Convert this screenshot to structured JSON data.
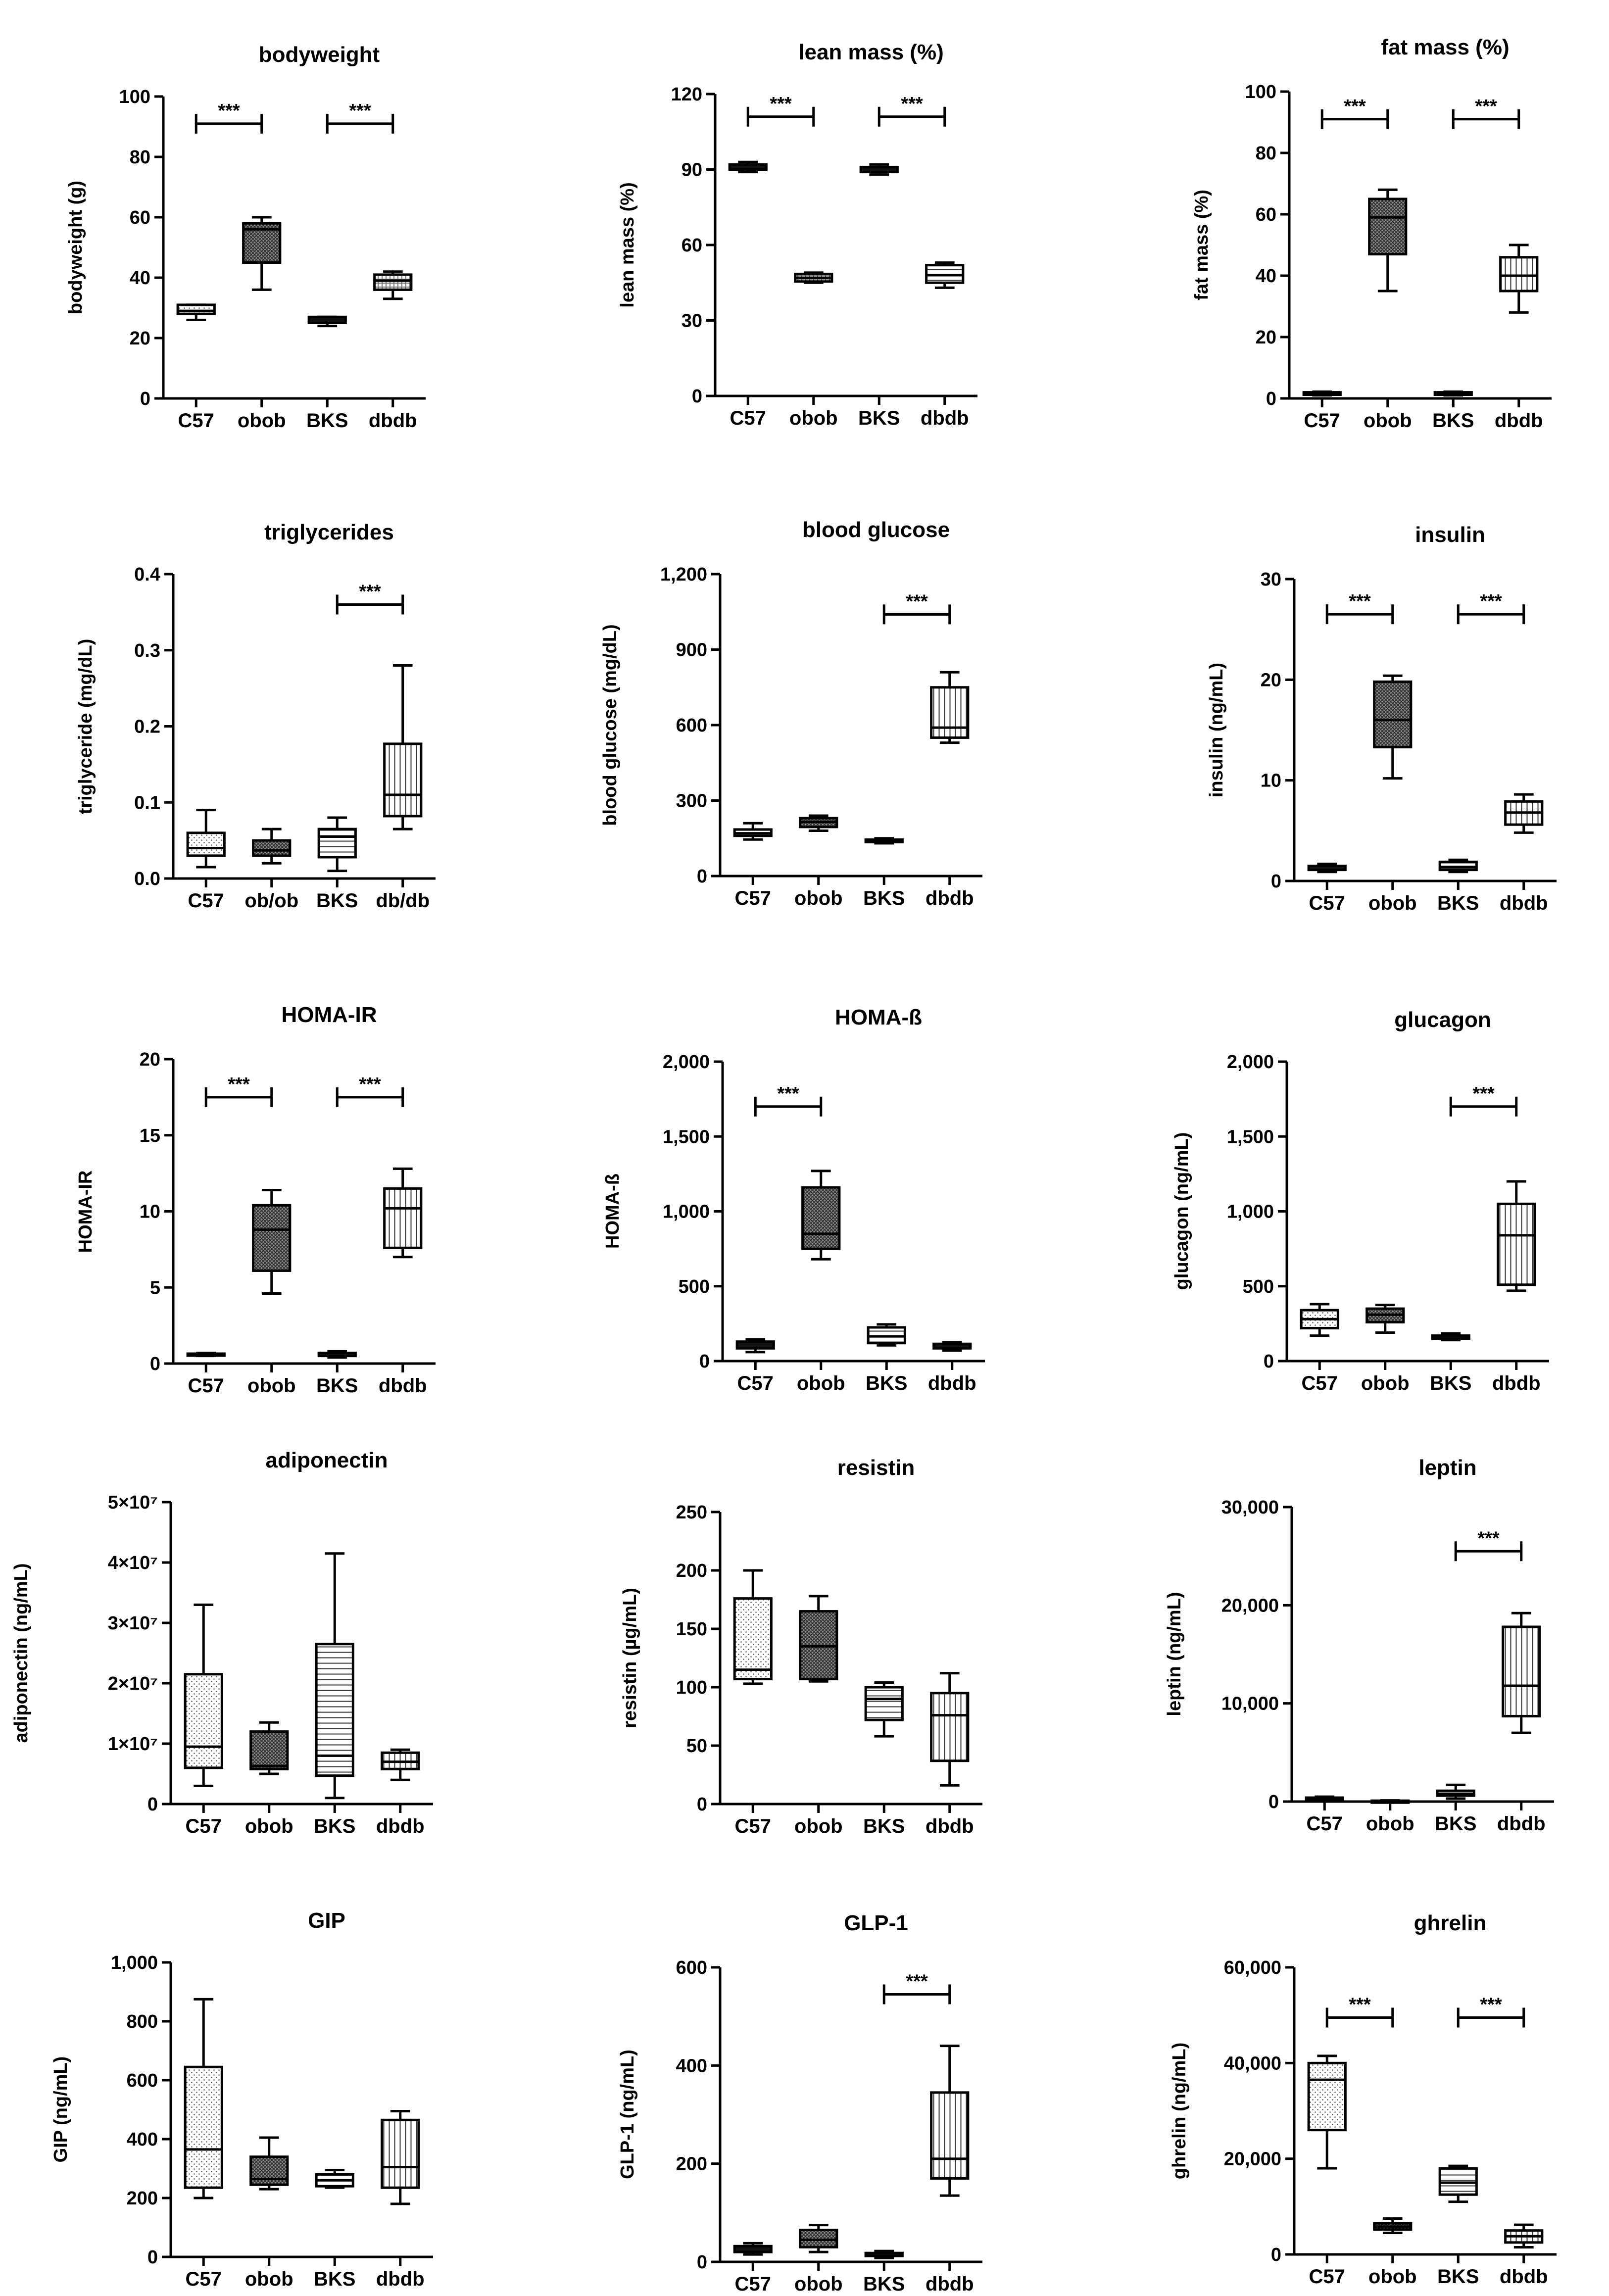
{
  "chart_data": [
    {
      "type": "box",
      "title": "bodyweight",
      "ylabel": "bodyweight (g)",
      "categories": [
        "C57",
        "obob",
        "BKS",
        "dbdb"
      ],
      "ylim": [
        0,
        100
      ],
      "yticks": [
        0,
        20,
        40,
        60,
        80,
        100
      ],
      "ytick_labels": [
        "0",
        "20",
        "40",
        "60",
        "80",
        "100"
      ],
      "boxes": [
        {
          "min": 26,
          "q1": 28,
          "median": 29,
          "q3": 31,
          "max": 31,
          "pattern": "dots"
        },
        {
          "min": 36,
          "q1": 45,
          "median": 56,
          "q3": 58,
          "max": 60,
          "pattern": "cross"
        },
        {
          "min": 24,
          "q1": 25,
          "median": 26,
          "q3": 27,
          "max": 27,
          "pattern": "solid"
        },
        {
          "min": 33,
          "q1": 36,
          "median": 39,
          "q3": 41,
          "max": 42,
          "pattern": "grid"
        }
      ],
      "significance": [
        {
          "from": 0,
          "to": 1,
          "label": "***",
          "y": 91
        },
        {
          "from": 2,
          "to": 3,
          "label": "***",
          "y": 91
        }
      ]
    },
    {
      "type": "box",
      "title": "lean mass (%)",
      "ylabel": "lean mass (%)",
      "categories": [
        "C57",
        "obob",
        "BKS",
        "dbdb"
      ],
      "ylim": [
        0,
        120
      ],
      "yticks": [
        0,
        30,
        60,
        90,
        120
      ],
      "ytick_labels": [
        "0",
        "30",
        "60",
        "90",
        "120"
      ],
      "boxes": [
        {
          "min": 89,
          "q1": 90,
          "median": 91,
          "q3": 92,
          "max": 93,
          "pattern": "solid"
        },
        {
          "min": 45,
          "q1": 45.5,
          "median": 47,
          "q3": 48.5,
          "max": 49,
          "pattern": "grid"
        },
        {
          "min": 88,
          "q1": 89,
          "median": 90,
          "q3": 91,
          "max": 92,
          "pattern": "solid"
        },
        {
          "min": 43,
          "q1": 45,
          "median": 48,
          "q3": 52,
          "max": 53,
          "pattern": "hlines"
        }
      ],
      "significance": [
        {
          "from": 0,
          "to": 1,
          "label": "***",
          "y": 111
        },
        {
          "from": 2,
          "to": 3,
          "label": "***",
          "y": 111
        }
      ]
    },
    {
      "type": "box",
      "title": "fat mass (%)",
      "ylabel": "fat mass (%)",
      "categories": [
        "C57",
        "obob",
        "BKS",
        "dbdb"
      ],
      "ylim": [
        0,
        100
      ],
      "yticks": [
        0,
        20,
        40,
        60,
        80,
        100
      ],
      "ytick_labels": [
        "0",
        "20",
        "40",
        "60",
        "80",
        "100"
      ],
      "boxes": [
        {
          "min": 1,
          "q1": 1.2,
          "median": 1.5,
          "q3": 2,
          "max": 2.2,
          "pattern": "solid"
        },
        {
          "min": 35,
          "q1": 47,
          "median": 59,
          "q3": 65,
          "max": 68,
          "pattern": "cross"
        },
        {
          "min": 1,
          "q1": 1.2,
          "median": 1.5,
          "q3": 2,
          "max": 2.2,
          "pattern": "solid"
        },
        {
          "min": 28,
          "q1": 35,
          "median": 40,
          "q3": 46,
          "max": 50,
          "pattern": "vlines"
        }
      ],
      "significance": [
        {
          "from": 0,
          "to": 1,
          "label": "***",
          "y": 91
        },
        {
          "from": 2,
          "to": 3,
          "label": "***",
          "y": 91
        }
      ]
    },
    {
      "type": "box",
      "title": "triglycerides",
      "ylabel": "triglyceride (mg/dL)",
      "categories": [
        "C57",
        "ob/ob",
        "BKS",
        "db/db"
      ],
      "ylim": [
        0,
        0.4
      ],
      "yticks": [
        0,
        0.1,
        0.2,
        0.3,
        0.4
      ],
      "ytick_labels": [
        "0.0",
        "0.1",
        "0.2",
        "0.3",
        "0.4"
      ],
      "boxes": [
        {
          "min": 0.015,
          "q1": 0.03,
          "median": 0.04,
          "q3": 0.06,
          "max": 0.09,
          "pattern": "dots"
        },
        {
          "min": 0.02,
          "q1": 0.03,
          "median": 0.037,
          "q3": 0.05,
          "max": 0.065,
          "pattern": "cross"
        },
        {
          "min": 0.01,
          "q1": 0.028,
          "median": 0.055,
          "q3": 0.065,
          "max": 0.08,
          "pattern": "hlines"
        },
        {
          "min": 0.065,
          "q1": 0.082,
          "median": 0.11,
          "q3": 0.177,
          "max": 0.28,
          "pattern": "vlines"
        }
      ],
      "significance": [
        {
          "from": 2,
          "to": 3,
          "label": "***",
          "y": 0.36
        }
      ]
    },
    {
      "type": "box",
      "title": "blood glucose",
      "ylabel": "blood glucose (mg/dL)",
      "categories": [
        "C57",
        "obob",
        "BKS",
        "dbdb"
      ],
      "ylim": [
        0,
        1200
      ],
      "yticks": [
        0,
        300,
        600,
        900,
        1200
      ],
      "ytick_labels": [
        "0",
        "300",
        "600",
        "900",
        "1,200"
      ],
      "boxes": [
        {
          "min": 145,
          "q1": 160,
          "median": 170,
          "q3": 185,
          "max": 210,
          "pattern": "hlines"
        },
        {
          "min": 180,
          "q1": 195,
          "median": 215,
          "q3": 230,
          "max": 240,
          "pattern": "cross"
        },
        {
          "min": 130,
          "q1": 135,
          "median": 140,
          "q3": 145,
          "max": 150,
          "pattern": "solid"
        },
        {
          "min": 530,
          "q1": 550,
          "median": 590,
          "q3": 750,
          "max": 810,
          "pattern": "vlines"
        }
      ],
      "significance": [
        {
          "from": 2,
          "to": 3,
          "label": "***",
          "y": 1040
        }
      ]
    },
    {
      "type": "box",
      "title": "insulin",
      "ylabel": "insulin (ng/mL)",
      "categories": [
        "C57",
        "obob",
        "BKS",
        "dbdb"
      ],
      "ylim": [
        0,
        30
      ],
      "yticks": [
        0,
        10,
        20,
        30
      ],
      "ytick_labels": [
        "0",
        "10",
        "20",
        "30"
      ],
      "boxes": [
        {
          "min": 0.9,
          "q1": 1.1,
          "median": 1.3,
          "q3": 1.5,
          "max": 1.7,
          "pattern": "solid"
        },
        {
          "min": 10.2,
          "q1": 13.3,
          "median": 16,
          "q3": 19.8,
          "max": 20.4,
          "pattern": "cross"
        },
        {
          "min": 0.9,
          "q1": 1.1,
          "median": 1.4,
          "q3": 1.9,
          "max": 2.1,
          "pattern": "hlines"
        },
        {
          "min": 4.8,
          "q1": 5.6,
          "median": 6.8,
          "q3": 7.9,
          "max": 8.6,
          "pattern": "vlines"
        }
      ],
      "significance": [
        {
          "from": 0,
          "to": 1,
          "label": "***",
          "y": 26.5
        },
        {
          "from": 2,
          "to": 3,
          "label": "***",
          "y": 26.5
        }
      ]
    },
    {
      "type": "box",
      "title": "HOMA-IR",
      "ylabel": "HOMA-IR",
      "categories": [
        "C57",
        "obob",
        "BKS",
        "dbdb"
      ],
      "ylim": [
        0,
        20
      ],
      "yticks": [
        0,
        5,
        10,
        15,
        20
      ],
      "ytick_labels": [
        "0",
        "5",
        "10",
        "15",
        "20"
      ],
      "boxes": [
        {
          "min": 0.5,
          "q1": 0.55,
          "median": 0.6,
          "q3": 0.65,
          "max": 0.7,
          "pattern": "solid"
        },
        {
          "min": 4.6,
          "q1": 6.1,
          "median": 8.8,
          "q3": 10.4,
          "max": 11.4,
          "pattern": "cross"
        },
        {
          "min": 0.4,
          "q1": 0.5,
          "median": 0.6,
          "q3": 0.7,
          "max": 0.8,
          "pattern": "solid"
        },
        {
          "min": 7,
          "q1": 7.6,
          "median": 10.2,
          "q3": 11.5,
          "max": 12.8,
          "pattern": "vlines"
        }
      ],
      "significance": [
        {
          "from": 0,
          "to": 1,
          "label": "***",
          "y": 17.5
        },
        {
          "from": 2,
          "to": 3,
          "label": "***",
          "y": 17.5
        }
      ]
    },
    {
      "type": "box",
      "title": "HOMA-ß",
      "ylabel": "HOMA-ß",
      "categories": [
        "C57",
        "obob",
        "BKS",
        "dbdb"
      ],
      "ylim": [
        0,
        2000
      ],
      "yticks": [
        0,
        500,
        1000,
        1500,
        2000
      ],
      "ytick_labels": [
        "0",
        "500",
        "1,000",
        "1,500",
        "2,000"
      ],
      "boxes": [
        {
          "min": 60,
          "q1": 85,
          "median": 110,
          "q3": 130,
          "max": 145,
          "pattern": "solid"
        },
        {
          "min": 680,
          "q1": 750,
          "median": 850,
          "q3": 1160,
          "max": 1270,
          "pattern": "cross"
        },
        {
          "min": 105,
          "q1": 120,
          "median": 165,
          "q3": 225,
          "max": 245,
          "pattern": "hlines"
        },
        {
          "min": 70,
          "q1": 85,
          "median": 100,
          "q3": 115,
          "max": 125,
          "pattern": "solid"
        }
      ],
      "significance": [
        {
          "from": 0,
          "to": 1,
          "label": "***",
          "y": 1700
        }
      ]
    },
    {
      "type": "box",
      "title": "glucagon",
      "ylabel": "glucagon (ng/mL)",
      "categories": [
        "C57",
        "obob",
        "BKS",
        "dbdb"
      ],
      "ylim": [
        0,
        2000
      ],
      "yticks": [
        0,
        500,
        1000,
        1500,
        2000
      ],
      "ytick_labels": [
        "0",
        "500",
        "1,000",
        "1,500",
        "2,000"
      ],
      "boxes": [
        {
          "min": 170,
          "q1": 220,
          "median": 280,
          "q3": 340,
          "max": 380,
          "pattern": "dots"
        },
        {
          "min": 190,
          "q1": 260,
          "median": 310,
          "q3": 350,
          "max": 375,
          "pattern": "cross"
        },
        {
          "min": 140,
          "q1": 150,
          "median": 160,
          "q3": 170,
          "max": 185,
          "pattern": "solid"
        },
        {
          "min": 470,
          "q1": 510,
          "median": 840,
          "q3": 1050,
          "max": 1200,
          "pattern": "vlines"
        }
      ],
      "significance": [
        {
          "from": 2,
          "to": 3,
          "label": "***",
          "y": 1700
        }
      ]
    },
    {
      "type": "box",
      "title": "adiponectin",
      "ylabel": "adiponectin (ng/mL)",
      "categories": [
        "C57",
        "obob",
        "BKS",
        "dbdb"
      ],
      "ylim": [
        0,
        50000000
      ],
      "yticks": [
        0,
        10000000,
        20000000,
        30000000,
        40000000,
        50000000
      ],
      "ytick_labels": [
        "0",
        "1×10⁷",
        "2×10⁷",
        "3×10⁷",
        "4×10⁷",
        "5×10⁷"
      ],
      "boxes": [
        {
          "min": 3000000,
          "q1": 6000000,
          "median": 9500000,
          "q3": 21500000,
          "max": 33000000,
          "pattern": "dots"
        },
        {
          "min": 5000000,
          "q1": 5800000,
          "median": 6300000,
          "q3": 12000000,
          "max": 13500000,
          "pattern": "cross"
        },
        {
          "min": 1000000,
          "q1": 4700000,
          "median": 8000000,
          "q3": 26500000,
          "max": 41500000,
          "pattern": "hlines"
        },
        {
          "min": 4000000,
          "q1": 5800000,
          "median": 7000000,
          "q3": 8500000,
          "max": 9000000,
          "pattern": "vlines"
        }
      ],
      "significance": []
    },
    {
      "type": "box",
      "title": "resistin",
      "ylabel": "resistin (µg/mL)",
      "categories": [
        "C57",
        "obob",
        "BKS",
        "dbdb"
      ],
      "ylim": [
        0,
        250
      ],
      "yticks": [
        0,
        50,
        100,
        150,
        200,
        250
      ],
      "ytick_labels": [
        "0",
        "50",
        "100",
        "150",
        "200",
        "250"
      ],
      "boxes": [
        {
          "min": 103,
          "q1": 107,
          "median": 115,
          "q3": 176,
          "max": 200,
          "pattern": "dots"
        },
        {
          "min": 105,
          "q1": 107,
          "median": 135,
          "q3": 165,
          "max": 178,
          "pattern": "cross"
        },
        {
          "min": 58,
          "q1": 72,
          "median": 90,
          "q3": 100,
          "max": 104,
          "pattern": "hlines"
        },
        {
          "min": 16,
          "q1": 37,
          "median": 76,
          "q3": 95,
          "max": 112,
          "pattern": "vlines"
        }
      ],
      "significance": []
    },
    {
      "type": "box",
      "title": "leptin",
      "ylabel": "leptin (ng/mL)",
      "categories": [
        "C57",
        "obob",
        "BKS",
        "dbdb"
      ],
      "ylim": [
        0,
        30000
      ],
      "yticks": [
        0,
        10000,
        20000,
        30000
      ],
      "ytick_labels": [
        "0",
        "10,000",
        "20,000",
        "30,000"
      ],
      "boxes": [
        {
          "min": 100,
          "q1": 200,
          "median": 300,
          "q3": 400,
          "max": 500,
          "pattern": "solid"
        },
        {
          "min": 0,
          "q1": 30,
          "median": 60,
          "q3": 90,
          "max": 120,
          "pattern": "solid"
        },
        {
          "min": 300,
          "q1": 600,
          "median": 800,
          "q3": 1100,
          "max": 1700,
          "pattern": "hlines"
        },
        {
          "min": 7000,
          "q1": 8700,
          "median": 11800,
          "q3": 17800,
          "max": 19200,
          "pattern": "vlines"
        }
      ],
      "significance": [
        {
          "from": 2,
          "to": 3,
          "label": "***",
          "y": 25500
        }
      ]
    },
    {
      "type": "box",
      "title": "GIP",
      "ylabel": "GIP (ng/mL)",
      "categories": [
        "C57",
        "obob",
        "BKS",
        "dbdb"
      ],
      "ylim": [
        0,
        1000
      ],
      "yticks": [
        0,
        200,
        400,
        600,
        800,
        1000
      ],
      "ytick_labels": [
        "0",
        "200",
        "400",
        "600",
        "800",
        "1,000"
      ],
      "boxes": [
        {
          "min": 200,
          "q1": 235,
          "median": 365,
          "q3": 645,
          "max": 875,
          "pattern": "dots"
        },
        {
          "min": 230,
          "q1": 245,
          "median": 265,
          "q3": 340,
          "max": 405,
          "pattern": "cross"
        },
        {
          "min": 235,
          "q1": 240,
          "median": 260,
          "q3": 280,
          "max": 295,
          "pattern": "hlines"
        },
        {
          "min": 180,
          "q1": 235,
          "median": 305,
          "q3": 465,
          "max": 495,
          "pattern": "vlines"
        }
      ],
      "significance": []
    },
    {
      "type": "box",
      "title": "GLP-1",
      "ylabel": "GLP-1 (ng/mL)",
      "categories": [
        "C57",
        "obob",
        "BKS",
        "dbdb"
      ],
      "ylim": [
        0,
        600
      ],
      "yticks": [
        0,
        200,
        400,
        600
      ],
      "ytick_labels": [
        "0",
        "200",
        "400",
        "600"
      ],
      "boxes": [
        {
          "min": 15,
          "q1": 20,
          "median": 25,
          "q3": 32,
          "max": 38,
          "pattern": "solid"
        },
        {
          "min": 20,
          "q1": 30,
          "median": 45,
          "q3": 65,
          "max": 75,
          "pattern": "cross"
        },
        {
          "min": 8,
          "q1": 12,
          "median": 15,
          "q3": 18,
          "max": 22,
          "pattern": "solid"
        },
        {
          "min": 135,
          "q1": 170,
          "median": 210,
          "q3": 345,
          "max": 440,
          "pattern": "vlines"
        }
      ],
      "significance": [
        {
          "from": 2,
          "to": 3,
          "label": "***",
          "y": 545
        }
      ]
    },
    {
      "type": "box",
      "title": "ghrelin",
      "ylabel": "ghrelin (ng/mL)",
      "categories": [
        "C57",
        "obob",
        "BKS",
        "dbdb"
      ],
      "ylim": [
        0,
        60000
      ],
      "yticks": [
        0,
        20000,
        40000,
        60000
      ],
      "ytick_labels": [
        "0",
        "20,000",
        "40,000",
        "60,000"
      ],
      "boxes": [
        {
          "min": 18000,
          "q1": 26000,
          "median": 36500,
          "q3": 40000,
          "max": 41500,
          "pattern": "dots"
        },
        {
          "min": 4500,
          "q1": 5200,
          "median": 5800,
          "q3": 6500,
          "max": 7500,
          "pattern": "cross"
        },
        {
          "min": 11000,
          "q1": 12500,
          "median": 15000,
          "q3": 18000,
          "max": 18500,
          "pattern": "hlines"
        },
        {
          "min": 1500,
          "q1": 2500,
          "median": 3800,
          "q3": 5000,
          "max": 6200,
          "pattern": "vlines"
        }
      ],
      "significance": [
        {
          "from": 0,
          "to": 1,
          "label": "***",
          "y": 49500
        },
        {
          "from": 2,
          "to": 3,
          "label": "***",
          "y": 49500
        }
      ]
    }
  ]
}
